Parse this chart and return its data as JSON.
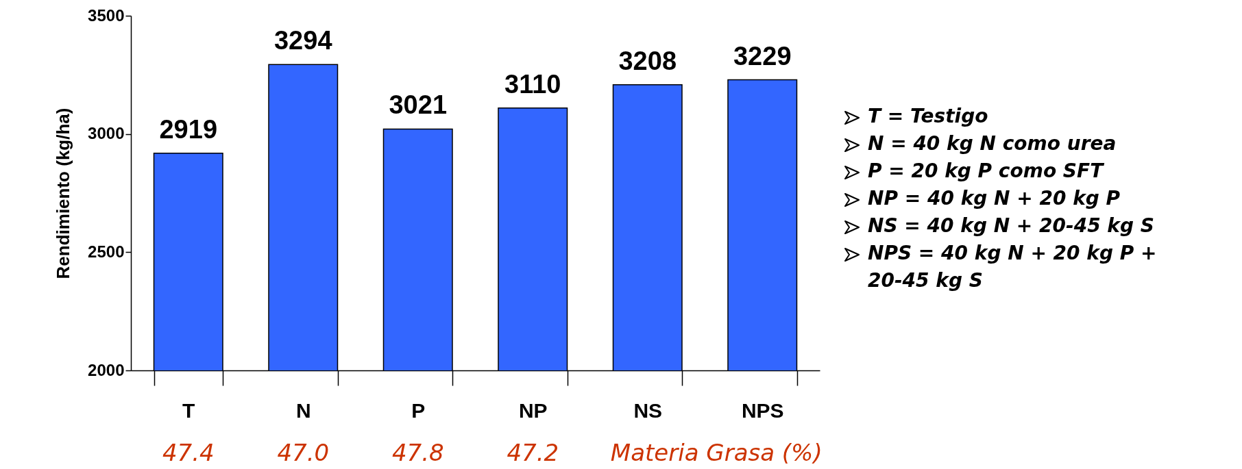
{
  "chart_data": {
    "type": "bar",
    "ylabel": "Rendimiento (kg/ha)",
    "categories": [
      "T",
      "N",
      "P",
      "NP",
      "NS",
      "NPS"
    ],
    "values": [
      2919,
      3294,
      3021,
      3110,
      3208,
      3229
    ],
    "color": "#3366ff",
    "ylim": [
      2000,
      3500
    ],
    "yticks": [
      2000,
      2500,
      3000,
      3500
    ],
    "grid": false,
    "data_labels": true,
    "annotations": [
      "T = Testigo",
      "N = 40 kg N como urea",
      "P = 20 kg P como SFT",
      "NP = 40 kg N + 20 kg P",
      "NS = 40 kg N + 20-45 kg S",
      "NPS = 40 kg N + 20 kg P + 20-45 kg S",
      "47.4",
      "47.0",
      "47.8",
      "47.2",
      "Materia Grasa (%)"
    ]
  }
}
